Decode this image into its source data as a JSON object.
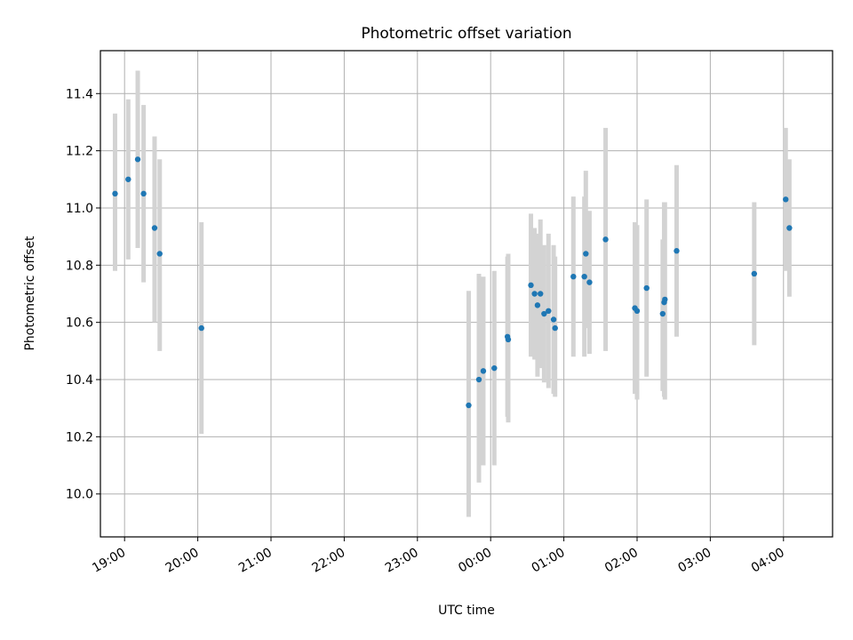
{
  "chart_data": {
    "type": "scatter",
    "title": "Photometric offset variation",
    "xlabel": "UTC time",
    "ylabel": "Photometric offset",
    "x_unit": "hours (UTC, continuing past midnight)",
    "x_range": [
      18.67,
      28.67
    ],
    "ylim": [
      9.85,
      11.55
    ],
    "grid": true,
    "x_ticks": [
      {
        "value": 19,
        "label": "19:00"
      },
      {
        "value": 20,
        "label": "20:00"
      },
      {
        "value": 21,
        "label": "21:00"
      },
      {
        "value": 22,
        "label": "22:00"
      },
      {
        "value": 23,
        "label": "23:00"
      },
      {
        "value": 24,
        "label": "00:00"
      },
      {
        "value": 25,
        "label": "01:00"
      },
      {
        "value": 26,
        "label": "02:00"
      },
      {
        "value": 27,
        "label": "03:00"
      },
      {
        "value": 28,
        "label": "04:00"
      }
    ],
    "y_ticks": [
      {
        "value": 10.0,
        "label": "10.0"
      },
      {
        "value": 10.2,
        "label": "10.2"
      },
      {
        "value": 10.4,
        "label": "10.4"
      },
      {
        "value": 10.6,
        "label": "10.6"
      },
      {
        "value": 10.8,
        "label": "10.8"
      },
      {
        "value": 11.0,
        "label": "11.0"
      },
      {
        "value": 11.2,
        "label": "11.2"
      },
      {
        "value": 11.4,
        "label": "11.4"
      }
    ],
    "series": [
      {
        "marker_color": "#1f77b4",
        "errorbar_color": "#d3d3d3",
        "points": [
          {
            "x": 18.87,
            "y": 11.05,
            "ylow": 10.78,
            "yhigh": 11.33
          },
          {
            "x": 19.05,
            "y": 11.1,
            "ylow": 10.82,
            "yhigh": 11.38
          },
          {
            "x": 19.18,
            "y": 11.17,
            "ylow": 10.86,
            "yhigh": 11.48
          },
          {
            "x": 19.26,
            "y": 11.05,
            "ylow": 10.74,
            "yhigh": 11.36
          },
          {
            "x": 19.41,
            "y": 10.93,
            "ylow": 10.6,
            "yhigh": 11.25
          },
          {
            "x": 19.48,
            "y": 10.84,
            "ylow": 10.5,
            "yhigh": 11.17
          },
          {
            "x": 20.05,
            "y": 10.58,
            "ylow": 10.21,
            "yhigh": 10.95
          },
          {
            "x": 23.7,
            "y": 10.31,
            "ylow": 9.92,
            "yhigh": 10.71
          },
          {
            "x": 23.84,
            "y": 10.4,
            "ylow": 10.04,
            "yhigh": 10.77
          },
          {
            "x": 23.9,
            "y": 10.43,
            "ylow": 10.1,
            "yhigh": 10.76
          },
          {
            "x": 24.05,
            "y": 10.44,
            "ylow": 10.1,
            "yhigh": 10.78
          },
          {
            "x": 24.23,
            "y": 10.55,
            "ylow": 10.27,
            "yhigh": 10.83
          },
          {
            "x": 24.24,
            "y": 10.54,
            "ylow": 10.25,
            "yhigh": 10.84
          },
          {
            "x": 24.55,
            "y": 10.73,
            "ylow": 10.48,
            "yhigh": 10.98
          },
          {
            "x": 24.6,
            "y": 10.7,
            "ylow": 10.47,
            "yhigh": 10.93
          },
          {
            "x": 24.64,
            "y": 10.66,
            "ylow": 10.41,
            "yhigh": 10.91
          },
          {
            "x": 24.68,
            "y": 10.7,
            "ylow": 10.44,
            "yhigh": 10.96
          },
          {
            "x": 24.73,
            "y": 10.63,
            "ylow": 10.39,
            "yhigh": 10.87
          },
          {
            "x": 24.79,
            "y": 10.64,
            "ylow": 10.37,
            "yhigh": 10.91
          },
          {
            "x": 24.86,
            "y": 10.61,
            "ylow": 10.35,
            "yhigh": 10.87
          },
          {
            "x": 24.88,
            "y": 10.58,
            "ylow": 10.34,
            "yhigh": 10.83
          },
          {
            "x": 25.13,
            "y": 10.76,
            "ylow": 10.48,
            "yhigh": 11.04
          },
          {
            "x": 25.28,
            "y": 10.76,
            "ylow": 10.48,
            "yhigh": 11.04
          },
          {
            "x": 25.3,
            "y": 10.84,
            "ylow": 10.58,
            "yhigh": 11.13
          },
          {
            "x": 25.35,
            "y": 10.74,
            "ylow": 10.49,
            "yhigh": 10.99
          },
          {
            "x": 25.57,
            "y": 10.89,
            "ylow": 10.5,
            "yhigh": 11.28
          },
          {
            "x": 25.97,
            "y": 10.65,
            "ylow": 10.35,
            "yhigh": 10.95
          },
          {
            "x": 26.0,
            "y": 10.64,
            "ylow": 10.33,
            "yhigh": 10.94
          },
          {
            "x": 26.13,
            "y": 10.72,
            "ylow": 10.41,
            "yhigh": 11.03
          },
          {
            "x": 26.35,
            "y": 10.63,
            "ylow": 10.36,
            "yhigh": 10.89
          },
          {
            "x": 26.37,
            "y": 10.67,
            "ylow": 10.34,
            "yhigh": 11.02
          },
          {
            "x": 26.38,
            "y": 10.68,
            "ylow": 10.33,
            "yhigh": 11.02
          },
          {
            "x": 26.54,
            "y": 10.85,
            "ylow": 10.55,
            "yhigh": 11.15
          },
          {
            "x": 27.6,
            "y": 10.77,
            "ylow": 10.52,
            "yhigh": 11.02
          },
          {
            "x": 28.03,
            "y": 11.03,
            "ylow": 10.78,
            "yhigh": 11.28
          },
          {
            "x": 28.08,
            "y": 10.93,
            "ylow": 10.69,
            "yhigh": 11.17
          }
        ]
      }
    ]
  }
}
